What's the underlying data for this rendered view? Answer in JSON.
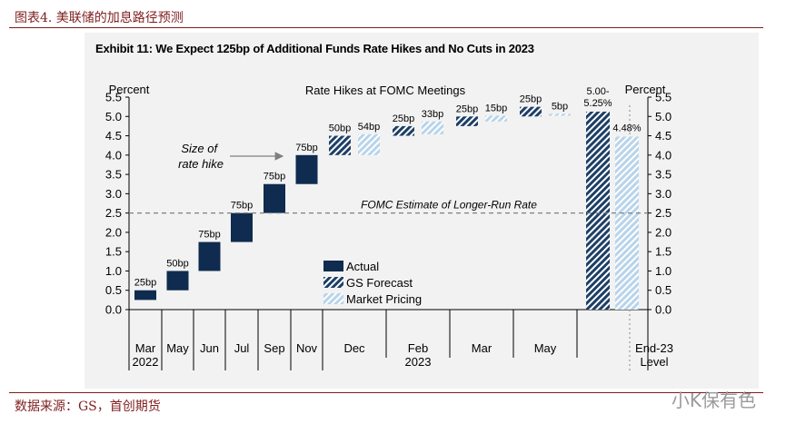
{
  "figure_label": "图表4.  美联储的加息路径预测",
  "source_note": "数据来源：GS，首创期货",
  "watermark": "小K保有色",
  "colors": {
    "actual": "#0f2b4f",
    "gs_forecast": "#1d3f66",
    "market_pricing": "#b8d4ea",
    "dashed_line": "#7f7f7f",
    "brand": "#7f1d1d"
  },
  "chart_data": {
    "type": "bar",
    "title": "Exhibit 11: We Expect 125bp of Additional Funds Rate Hikes and No Cuts in 2023",
    "subtitle": "Rate Hikes at FOMC Meetings",
    "ylabel_left": "Percent",
    "ylabel_right": "Percent",
    "ylim": [
      0.0,
      5.5
    ],
    "yticks": [
      "0.0",
      "0.5",
      "1.0",
      "1.5",
      "2.0",
      "2.5",
      "3.0",
      "3.5",
      "4.0",
      "4.5",
      "5.0",
      "5.5"
    ],
    "categories": [
      "Mar",
      "May",
      "Jun",
      "Jul",
      "Sep",
      "Nov",
      "Dec",
      "Feb",
      "Mar",
      "May",
      "End-23"
    ],
    "category_sublabels": {
      "Mar": "2022",
      "Feb": "2023",
      "End-23": "Level"
    },
    "actual": [
      {
        "x": "Mar",
        "start": 0.25,
        "end": 0.5,
        "label": "25bp"
      },
      {
        "x": "May",
        "start": 0.5,
        "end": 1.0,
        "label": "50bp"
      },
      {
        "x": "Jun",
        "start": 1.0,
        "end": 1.75,
        "label": "75bp"
      },
      {
        "x": "Jul",
        "start": 1.75,
        "end": 2.5,
        "label": "75bp"
      },
      {
        "x": "Sep",
        "start": 2.5,
        "end": 3.25,
        "label": "75bp"
      },
      {
        "x": "Nov",
        "start": 3.25,
        "end": 4.0,
        "label": "75bp"
      }
    ],
    "gs_forecast": [
      {
        "x": "Dec",
        "start": 4.0,
        "end": 4.5,
        "label": "50bp"
      },
      {
        "x": "Feb",
        "start": 4.5,
        "end": 4.75,
        "label": "25bp"
      },
      {
        "x": "Mar",
        "start": 4.75,
        "end": 5.0,
        "label": "25bp"
      },
      {
        "x": "May",
        "start": 5.0,
        "end": 5.25,
        "label": "25bp"
      }
    ],
    "market_pricing": [
      {
        "x": "Dec",
        "start": 4.0,
        "end": 4.54,
        "label": "54bp"
      },
      {
        "x": "Feb",
        "start": 4.54,
        "end": 4.87,
        "label": "33bp"
      },
      {
        "x": "Mar",
        "start": 4.87,
        "end": 5.02,
        "label": "15bp"
      },
      {
        "x": "May",
        "start": 5.02,
        "end": 5.07,
        "label": "5bp"
      }
    ],
    "end_level": {
      "gs_forecast": 5.125,
      "gs_label": "5.00-\n5.25%",
      "market_pricing": 4.48,
      "market_label": "4.48%"
    },
    "reference_line": {
      "value": 2.5,
      "label": "FOMC Estimate of Longer-Run Rate"
    },
    "annotation": {
      "text": "Size of\nrate hike"
    },
    "legend": [
      "Actual",
      "GS Forecast",
      "Market Pricing"
    ],
    "legend_position": "lower-middle"
  }
}
